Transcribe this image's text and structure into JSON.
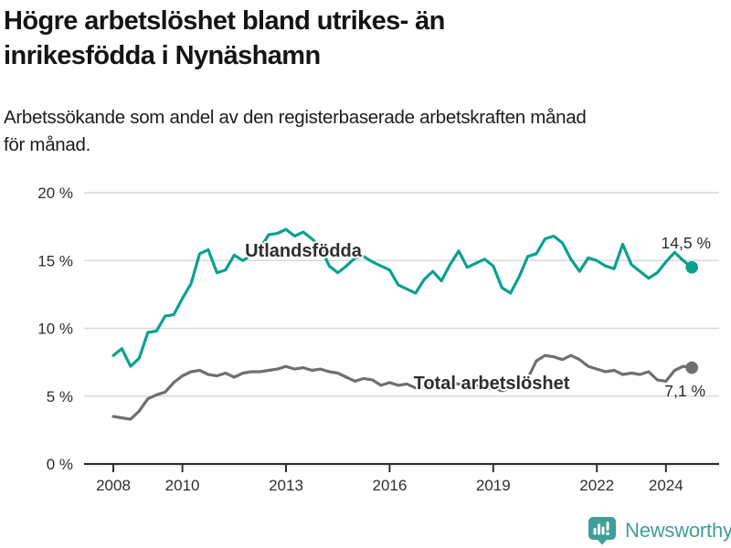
{
  "header": {
    "title": "Högre arbetslöshet bland utrikes- än\ninrikesfödda i Nynäshamn",
    "subtitle": "Arbetssökande som andel av den registerbaserade arbetskraften månad\nför månad."
  },
  "footer": {
    "brand": "Newsworthy",
    "logo_icon": "bar-chart-speech-bubble-icon"
  },
  "colors": {
    "accent_teal": "#0aa18e",
    "series_gray": "#6f6f6f",
    "brand_teal": "#3f9e98",
    "grid_line": "#d9d9d9",
    "axis_line": "#2e2e2e"
  },
  "chart_data": {
    "type": "line",
    "title": "Högre arbetslöshet bland utrikes- än inrikesfödda i Nynäshamn",
    "subtitle": "Arbetssökande som andel av den registerbaserade arbetskraften månad för månad.",
    "unit": "%",
    "grid": "horizontal",
    "legend": "inline-labels",
    "x_axis": {
      "tick_labels": [
        "2008",
        "2010",
        "2013",
        "2016",
        "2019",
        "2022",
        "2024"
      ],
      "tick_values": [
        2008,
        2010,
        2013,
        2016,
        2019,
        2022,
        2024
      ],
      "range": [
        2007.15,
        2025.55
      ]
    },
    "y_axis": {
      "tick_labels": [
        "0 %",
        "5 %",
        "10 %",
        "15 %",
        "20 %"
      ],
      "tick_values": [
        0,
        5,
        10,
        15,
        20
      ],
      "range": [
        0,
        20
      ]
    },
    "series": [
      {
        "name": "Utlandsfödda",
        "color": "#0aa18e",
        "end_label": "14,5 %",
        "end_value": 14.5,
        "x_start": 2008.0,
        "x_step": 0.25,
        "values": [
          8.0,
          8.5,
          7.2,
          7.8,
          9.7,
          9.8,
          10.9,
          11.0,
          12.2,
          13.3,
          15.5,
          15.8,
          14.1,
          14.3,
          15.4,
          15.0,
          15.4,
          15.9,
          16.9,
          17.0,
          17.3,
          16.8,
          17.1,
          16.6,
          16.0,
          14.6,
          14.1,
          14.6,
          15.2,
          15.3,
          14.9,
          14.6,
          14.3,
          13.2,
          12.9,
          12.6,
          13.6,
          14.2,
          13.5,
          14.7,
          15.7,
          14.5,
          14.8,
          15.1,
          14.6,
          13.0,
          12.6,
          13.8,
          15.3,
          15.5,
          16.6,
          16.8,
          16.3,
          15.1,
          14.2,
          15.2,
          15.0,
          14.6,
          14.4,
          16.2,
          14.7,
          14.2,
          13.7,
          14.1,
          14.9,
          15.6,
          15.0,
          14.5
        ]
      },
      {
        "name": "Total arbetslöshet",
        "color": "#6f6f6f",
        "end_label": "7,1 %",
        "end_value": 7.1,
        "x_start": 2008.0,
        "x_step": 0.25,
        "values": [
          3.5,
          3.4,
          3.3,
          3.9,
          4.8,
          5.1,
          5.3,
          6.0,
          6.5,
          6.8,
          6.9,
          6.6,
          6.5,
          6.7,
          6.4,
          6.7,
          6.8,
          6.8,
          6.9,
          7.0,
          7.2,
          7.0,
          7.1,
          6.9,
          7.0,
          6.8,
          6.7,
          6.4,
          6.1,
          6.3,
          6.2,
          5.8,
          6.0,
          5.8,
          5.9,
          5.6,
          5.8,
          6.0,
          5.9,
          6.0,
          5.9,
          5.7,
          5.8,
          5.6,
          5.6,
          5.4,
          5.6,
          5.9,
          6.3,
          7.6,
          8.0,
          7.9,
          7.7,
          8.0,
          7.7,
          7.2,
          7.0,
          6.8,
          6.9,
          6.6,
          6.7,
          6.6,
          6.8,
          6.2,
          6.1,
          6.9,
          7.2,
          7.1
        ]
      }
    ]
  }
}
